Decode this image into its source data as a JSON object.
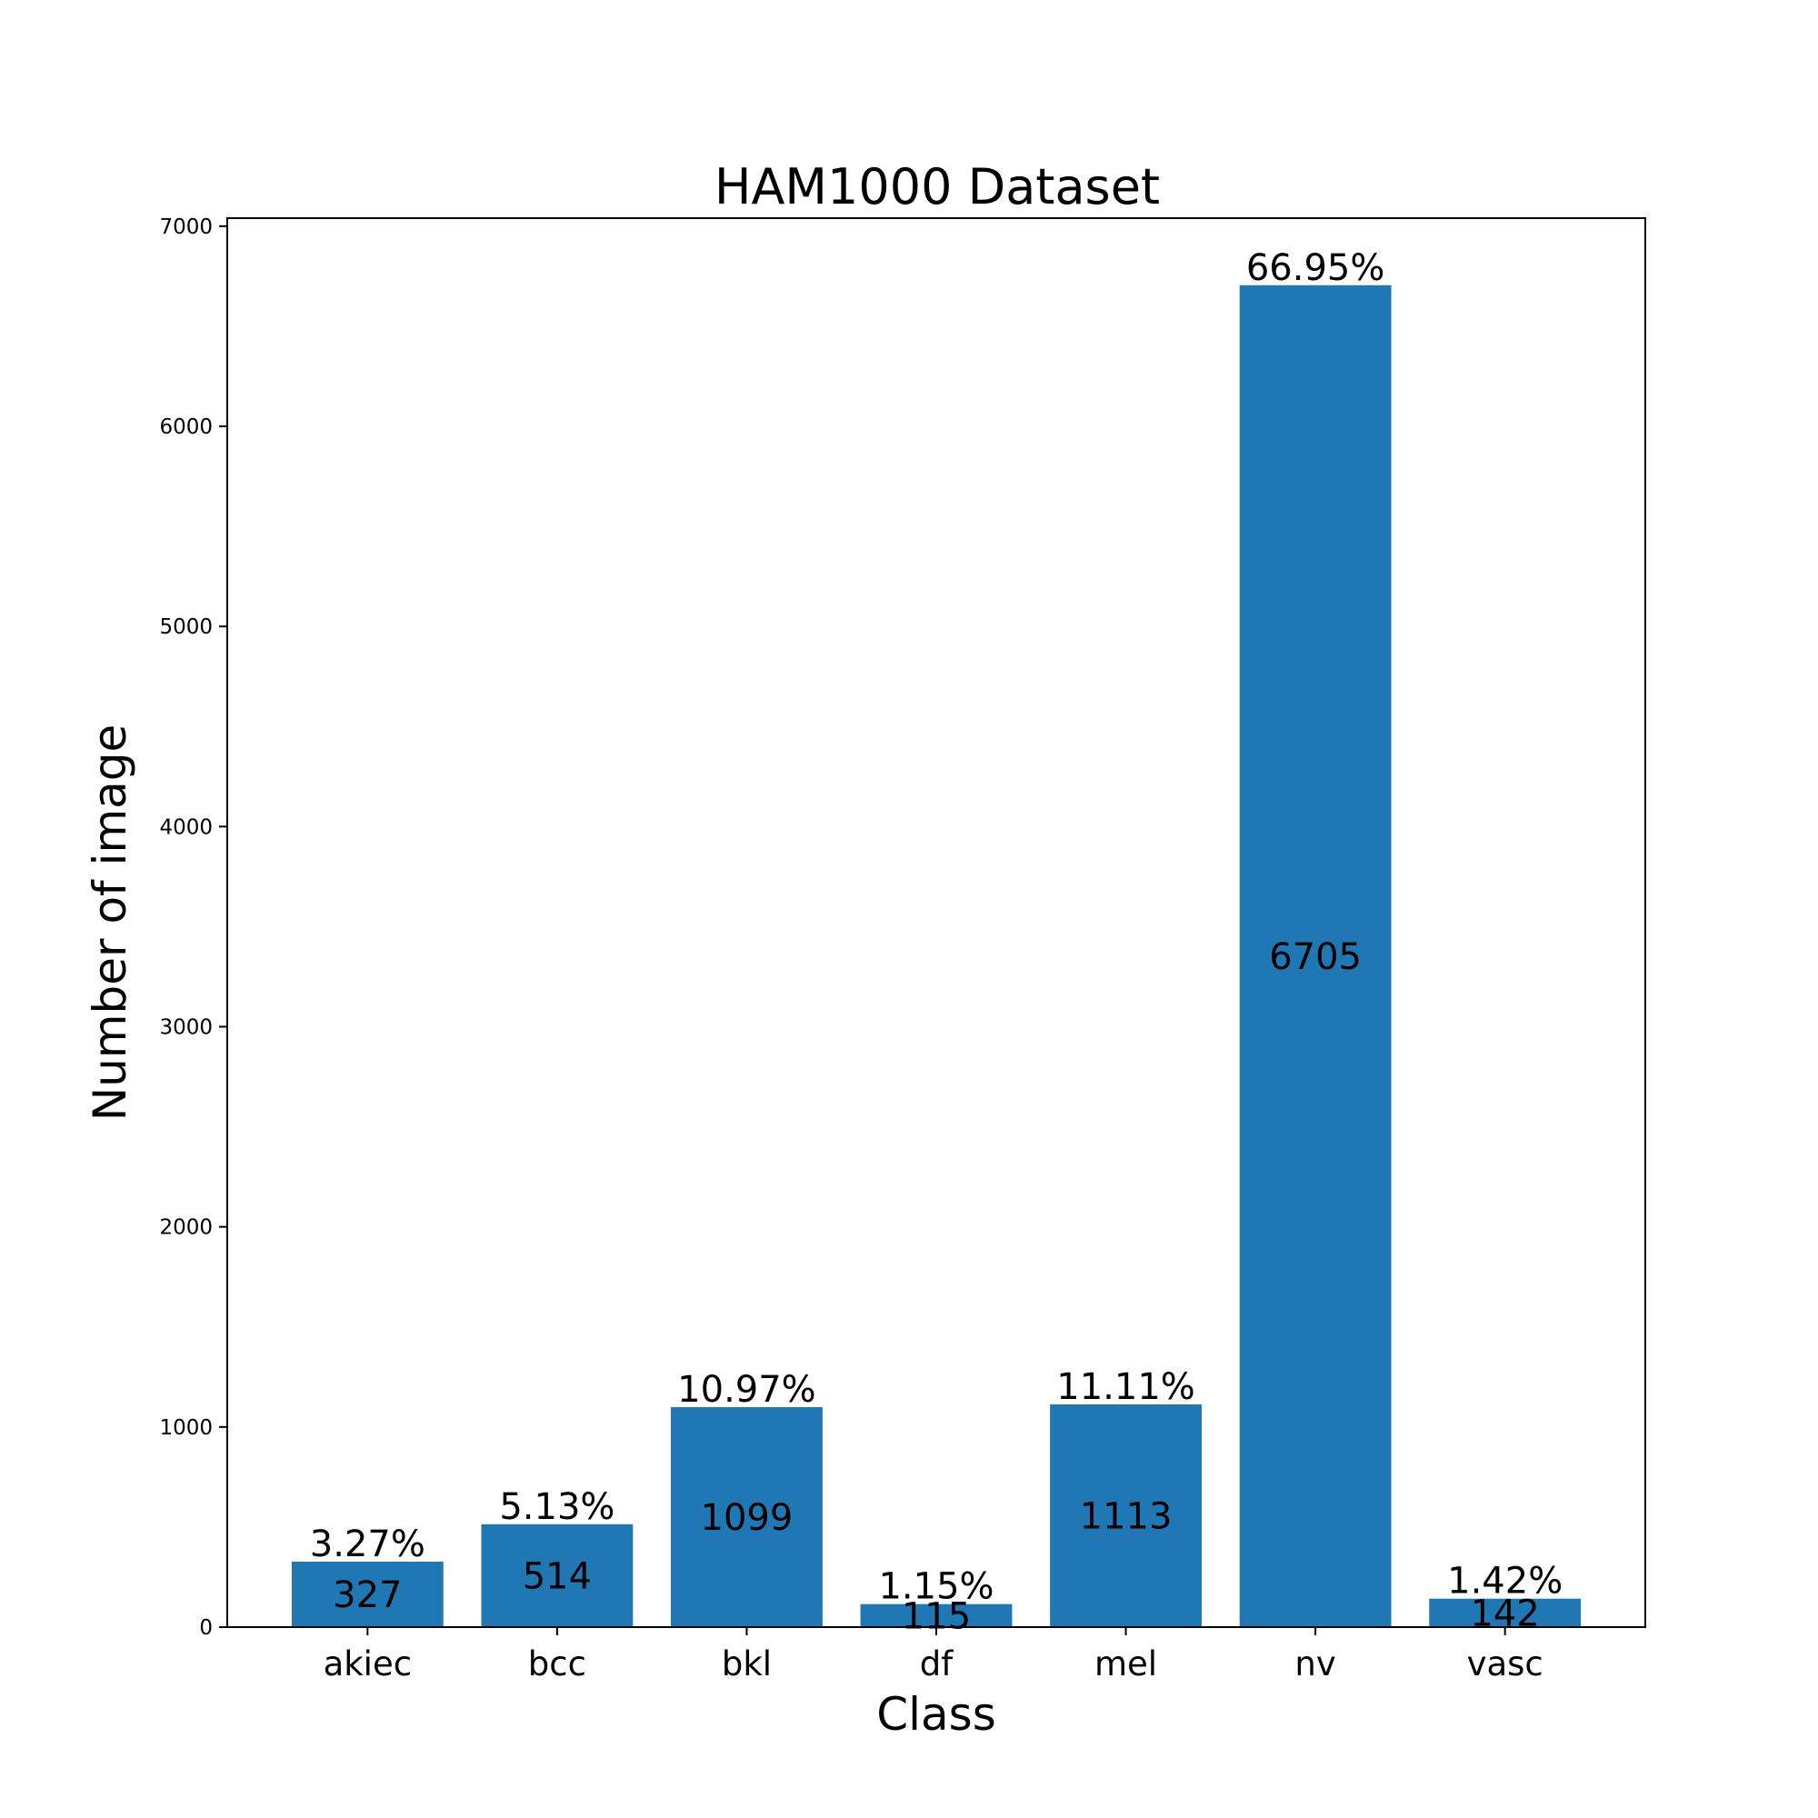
{
  "chart_data": {
    "type": "bar",
    "title": "HAM1000 Dataset",
    "xlabel": "Class",
    "ylabel": "Number of image",
    "categories": [
      "akiec",
      "bcc",
      "bkl",
      "df",
      "mel",
      "nv",
      "vasc"
    ],
    "values": [
      327,
      514,
      1099,
      115,
      1113,
      6705,
      142
    ],
    "percent_labels": [
      "3.27%",
      "5.13%",
      "10.97%",
      "1.15%",
      "11.11%",
      "66.95%",
      "1.42%"
    ],
    "ylim": [
      0,
      7040
    ],
    "yticks": [
      0,
      1000,
      2000,
      3000,
      4000,
      5000,
      6000,
      7000
    ],
    "grid": false,
    "legend": "none",
    "bar_color": "#1f77b4"
  }
}
